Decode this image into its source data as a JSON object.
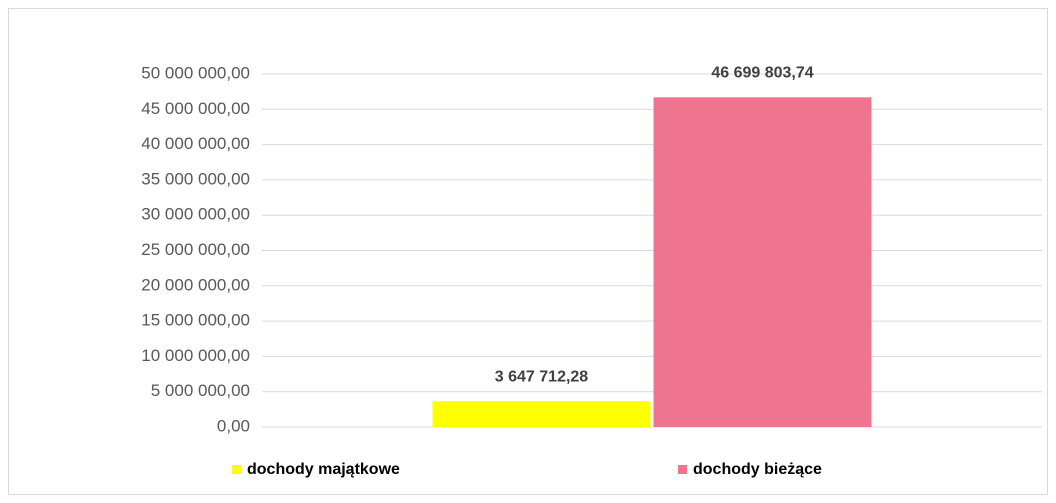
{
  "chart_data": {
    "type": "bar",
    "categories": [
      null
    ],
    "series": [
      {
        "name": "dochody majątkowe",
        "color": "#ffff00",
        "values": [
          3647712.28
        ],
        "value_labels": [
          "3 647 712,28"
        ]
      },
      {
        "name": "dochody bieżące",
        "color": "#ee7490",
        "values": [
          46699803.74
        ],
        "value_labels": [
          "46 699 803,74"
        ]
      }
    ],
    "ylim": [
      0,
      50000000
    ],
    "yticks": [
      {
        "value": 0,
        "label": "0,00"
      },
      {
        "value": 5000000,
        "label": "5 000 000,00"
      },
      {
        "value": 10000000,
        "label": "10 000 000,00"
      },
      {
        "value": 15000000,
        "label": "15 000 000,00"
      },
      {
        "value": 20000000,
        "label": "20 000 000,00"
      },
      {
        "value": 25000000,
        "label": "25 000 000,00"
      },
      {
        "value": 30000000,
        "label": "30 000 000,00"
      },
      {
        "value": 35000000,
        "label": "35 000 000,00"
      },
      {
        "value": 40000000,
        "label": "40 000 000,00"
      },
      {
        "value": 45000000,
        "label": "45 000 000,00"
      },
      {
        "value": 50000000,
        "label": "50 000 000,00"
      }
    ],
    "grid": true,
    "legend": "bottom"
  }
}
